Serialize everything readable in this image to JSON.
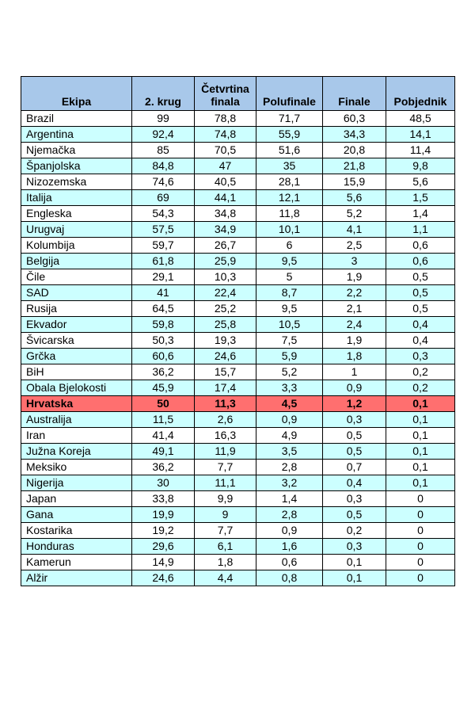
{
  "colors": {
    "header_bg": "#a8c8ea",
    "row_white": "#ffffff",
    "row_cyan": "#ccffff",
    "highlight": "#ff6f6f"
  },
  "table": {
    "headers": [
      "Ekipa",
      "2. krug",
      "Četvrtina\nfinala",
      "Polufinale",
      "Finale",
      "Pobjednik"
    ],
    "rows": [
      {
        "team": "Brazil",
        "values": [
          "99",
          "78,8",
          "71,7",
          "60,3",
          "48,5"
        ],
        "style": "white"
      },
      {
        "team": "Argentina",
        "values": [
          "92,4",
          "74,8",
          "55,9",
          "34,3",
          "14,1"
        ],
        "style": "cyan"
      },
      {
        "team": "Njemačka",
        "values": [
          "85",
          "70,5",
          "51,6",
          "20,8",
          "11,4"
        ],
        "style": "white"
      },
      {
        "team": "Španjolska",
        "values": [
          "84,8",
          "47",
          "35",
          "21,8",
          "9,8"
        ],
        "style": "cyan"
      },
      {
        "team": "Nizozemska",
        "values": [
          "74,6",
          "40,5",
          "28,1",
          "15,9",
          "5,6"
        ],
        "style": "white"
      },
      {
        "team": "Italija",
        "values": [
          "69",
          "44,1",
          "12,1",
          "5,6",
          "1,5"
        ],
        "style": "cyan"
      },
      {
        "team": "Engleska",
        "values": [
          "54,3",
          "34,8",
          "11,8",
          "5,2",
          "1,4"
        ],
        "style": "white"
      },
      {
        "team": "Urugvaj",
        "values": [
          "57,5",
          "34,9",
          "10,1",
          "4,1",
          "1,1"
        ],
        "style": "cyan"
      },
      {
        "team": "Kolumbija",
        "values": [
          "59,7",
          "26,7",
          "6",
          "2,5",
          "0,6"
        ],
        "style": "white"
      },
      {
        "team": "Belgija",
        "values": [
          "61,8",
          "25,9",
          "9,5",
          "3",
          "0,6"
        ],
        "style": "cyan"
      },
      {
        "team": "Čile",
        "values": [
          "29,1",
          "10,3",
          "5",
          "1,9",
          "0,5"
        ],
        "style": "white"
      },
      {
        "team": "SAD",
        "values": [
          "41",
          "22,4",
          "8,7",
          "2,2",
          "0,5"
        ],
        "style": "cyan"
      },
      {
        "team": "Rusija",
        "values": [
          "64,5",
          "25,2",
          "9,5",
          "2,1",
          "0,5"
        ],
        "style": "white"
      },
      {
        "team": "Ekvador",
        "values": [
          "59,8",
          "25,8",
          "10,5",
          "2,4",
          "0,4"
        ],
        "style": "cyan"
      },
      {
        "team": "Švicarska",
        "values": [
          "50,3",
          "19,3",
          "7,5",
          "1,9",
          "0,4"
        ],
        "style": "white"
      },
      {
        "team": "Grčka",
        "values": [
          "60,6",
          "24,6",
          "5,9",
          "1,8",
          "0,3"
        ],
        "style": "cyan"
      },
      {
        "team": "BiH",
        "values": [
          "36,2",
          "15,7",
          "5,2",
          "1",
          "0,2"
        ],
        "style": "white"
      },
      {
        "team": "Obala Bjelokosti",
        "values": [
          "45,9",
          "17,4",
          "3,3",
          "0,9",
          "0,2"
        ],
        "style": "cyan"
      },
      {
        "team": "Hrvatska",
        "values": [
          "50",
          "11,3",
          "4,5",
          "1,2",
          "0,1"
        ],
        "style": "highlight"
      },
      {
        "team": "Australija",
        "values": [
          "11,5",
          "2,6",
          "0,9",
          "0,3",
          "0,1"
        ],
        "style": "cyan"
      },
      {
        "team": "Iran",
        "values": [
          "41,4",
          "16,3",
          "4,9",
          "0,5",
          "0,1"
        ],
        "style": "white"
      },
      {
        "team": "Južna Koreja",
        "values": [
          "49,1",
          "11,9",
          "3,5",
          "0,5",
          "0,1"
        ],
        "style": "cyan"
      },
      {
        "team": "Meksiko",
        "values": [
          "36,2",
          "7,7",
          "2,8",
          "0,7",
          "0,1"
        ],
        "style": "white"
      },
      {
        "team": "Nigerija",
        "values": [
          "30",
          "11,1",
          "3,2",
          "0,4",
          "0,1"
        ],
        "style": "cyan"
      },
      {
        "team": "Japan",
        "values": [
          "33,8",
          "9,9",
          "1,4",
          "0,3",
          "0"
        ],
        "style": "white"
      },
      {
        "team": "Gana",
        "values": [
          "19,9",
          "9",
          "2,8",
          "0,5",
          "0"
        ],
        "style": "cyan"
      },
      {
        "team": "Kostarika",
        "values": [
          "19,2",
          "7,7",
          "0,9",
          "0,2",
          "0"
        ],
        "style": "white"
      },
      {
        "team": "Honduras",
        "values": [
          "29,6",
          "6,1",
          "1,6",
          "0,3",
          "0"
        ],
        "style": "cyan"
      },
      {
        "team": "Kamerun",
        "values": [
          "14,9",
          "1,8",
          "0,6",
          "0,1",
          "0"
        ],
        "style": "white"
      },
      {
        "team": "Alžir",
        "values": [
          "24,6",
          "4,4",
          "0,8",
          "0,1",
          "0"
        ],
        "style": "cyan"
      }
    ]
  }
}
